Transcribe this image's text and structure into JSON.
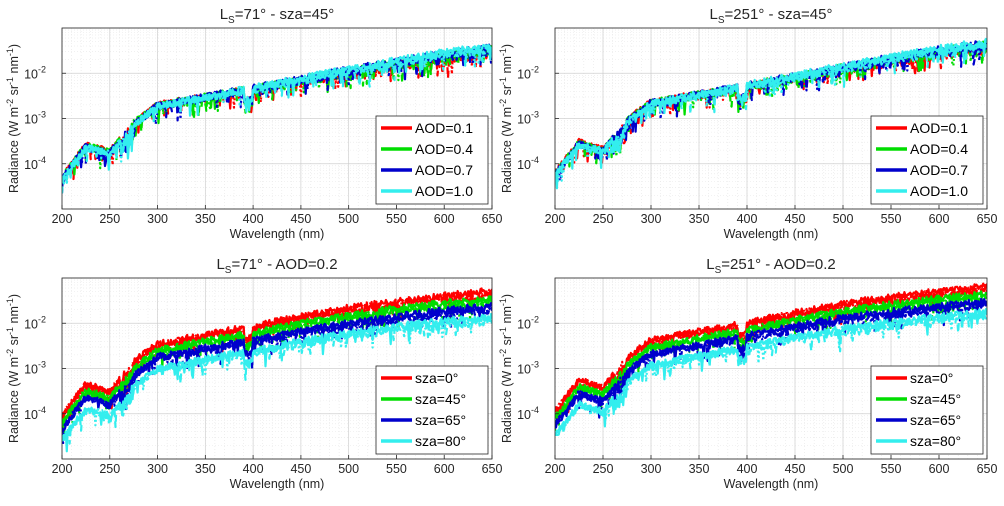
{
  "chart_data": [
    {
      "type": "line",
      "title": "Ls=71°  -  sza=45°",
      "title_parts": {
        "pre": "L",
        "sub": "S",
        "post": "=71°   -   sza=45°"
      },
      "xlabel": "Wavelength (nm)",
      "ylabel_parts": {
        "a": "Radiance (W m",
        "s1": "-2",
        "b": " sr",
        "s2": "-1",
        "c": " nm",
        "s3": "-1",
        "d": ")"
      },
      "xlim": [
        200,
        650
      ],
      "ylim": [
        1e-05,
        0.1
      ],
      "yscale": "log",
      "grid": true,
      "legend_position": "bottom-right",
      "x_ticks": [
        200,
        250,
        300,
        350,
        400,
        450,
        500,
        550,
        600,
        650
      ],
      "y_ticks": [
        {
          "v": 0.0001,
          "m": "10",
          "e": "-4"
        },
        {
          "v": 0.001,
          "m": "10",
          "e": "-3"
        },
        {
          "v": 0.01,
          "m": "10",
          "e": "-2"
        }
      ],
      "x": [
        200,
        225,
        250,
        275,
        300,
        350,
        400,
        450,
        500,
        550,
        600,
        650
      ],
      "series": [
        {
          "name": "AOD=0.1",
          "color": "#ff0000",
          "values": [
            5e-05,
            0.00026,
            0.00018,
            0.0008,
            0.002,
            0.003,
            0.0045,
            0.007,
            0.011,
            0.016,
            0.024,
            0.033
          ]
        },
        {
          "name": "AOD=0.4",
          "color": "#00dd00",
          "values": [
            4.8e-05,
            0.00025,
            0.000175,
            0.00078,
            0.00195,
            0.003,
            0.0046,
            0.0072,
            0.0115,
            0.017,
            0.025,
            0.035
          ]
        },
        {
          "name": "AOD=0.7",
          "color": "#0000cc",
          "values": [
            4.6e-05,
            0.00024,
            0.00017,
            0.00075,
            0.0019,
            0.003,
            0.0047,
            0.0074,
            0.012,
            0.018,
            0.027,
            0.037
          ]
        },
        {
          "name": "AOD=1.0",
          "color": "#33eeee",
          "values": [
            4.4e-05,
            0.00023,
            0.000165,
            0.00072,
            0.00185,
            0.003,
            0.0048,
            0.0076,
            0.0125,
            0.019,
            0.029,
            0.04
          ]
        }
      ]
    },
    {
      "type": "line",
      "title": "Ls=251°  -  sza=45°",
      "title_parts": {
        "pre": "L",
        "sub": "S",
        "post": "=251°   -   sza=45°"
      },
      "xlabel": "Wavelength (nm)",
      "ylabel_parts": {
        "a": "Radiance (W m",
        "s1": "-2",
        "b": " sr",
        "s2": "-1",
        "c": " nm",
        "s3": "-1",
        "d": ")"
      },
      "xlim": [
        200,
        650
      ],
      "ylim": [
        1e-05,
        0.1
      ],
      "yscale": "log",
      "grid": true,
      "legend_position": "bottom-right",
      "x_ticks": [
        200,
        250,
        300,
        350,
        400,
        450,
        500,
        550,
        600,
        650
      ],
      "y_ticks": [
        {
          "v": 0.0001,
          "m": "10",
          "e": "-4"
        },
        {
          "v": 0.001,
          "m": "10",
          "e": "-3"
        },
        {
          "v": 0.01,
          "m": "10",
          "e": "-2"
        }
      ],
      "x": [
        200,
        225,
        250,
        275,
        300,
        350,
        400,
        450,
        500,
        550,
        600,
        650
      ],
      "series": [
        {
          "name": "AOD=0.1",
          "color": "#ff0000",
          "values": [
            6e-05,
            0.0003,
            0.0002,
            0.0009,
            0.0023,
            0.0034,
            0.0052,
            0.008,
            0.013,
            0.02,
            0.029,
            0.04
          ]
        },
        {
          "name": "AOD=0.4",
          "color": "#00dd00",
          "values": [
            5.8e-05,
            0.00029,
            0.000195,
            0.00088,
            0.00225,
            0.0034,
            0.0053,
            0.0083,
            0.0135,
            0.021,
            0.031,
            0.043
          ]
        },
        {
          "name": "AOD=0.7",
          "color": "#0000cc",
          "values": [
            5.6e-05,
            0.00028,
            0.00019,
            0.00085,
            0.0022,
            0.0034,
            0.0054,
            0.0086,
            0.014,
            0.022,
            0.033,
            0.046
          ]
        },
        {
          "name": "AOD=1.0",
          "color": "#33eeee",
          "values": [
            5.4e-05,
            0.00027,
            0.000185,
            0.00082,
            0.00215,
            0.0034,
            0.0055,
            0.0089,
            0.0145,
            0.023,
            0.035,
            0.05
          ]
        }
      ]
    },
    {
      "type": "line",
      "title": "Ls=71°  -  AOD=0.2",
      "title_parts": {
        "pre": "L",
        "sub": "S",
        "post": "=71°   -   AOD=0.2"
      },
      "xlabel": "Wavelength (nm)",
      "ylabel_parts": {
        "a": "Radiance (W m",
        "s1": "-2",
        "b": " sr",
        "s2": "-1",
        "c": " nm",
        "s3": "-1",
        "d": ")"
      },
      "xlim": [
        200,
        650
      ],
      "ylim": [
        1e-05,
        0.1
      ],
      "yscale": "log",
      "grid": true,
      "legend_position": "bottom-right",
      "x_ticks": [
        200,
        250,
        300,
        350,
        400,
        450,
        500,
        550,
        600,
        650
      ],
      "y_ticks": [
        {
          "v": 0.0001,
          "m": "10",
          "e": "-4"
        },
        {
          "v": 0.001,
          "m": "10",
          "e": "-3"
        },
        {
          "v": 0.01,
          "m": "10",
          "e": "-2"
        }
      ],
      "x": [
        200,
        225,
        250,
        275,
        300,
        350,
        400,
        450,
        500,
        550,
        600,
        650
      ],
      "series": [
        {
          "name": "sza=0°",
          "color": "#ff0000",
          "values": [
            9e-05,
            0.00045,
            0.0003,
            0.0014,
            0.0035,
            0.0055,
            0.0085,
            0.014,
            0.022,
            0.03,
            0.04,
            0.052
          ]
        },
        {
          "name": "sza=45°",
          "color": "#00dd00",
          "values": [
            6.5e-05,
            0.00032,
            0.00022,
            0.001,
            0.0025,
            0.004,
            0.006,
            0.01,
            0.015,
            0.021,
            0.028,
            0.036
          ]
        },
        {
          "name": "sza=65°",
          "color": "#0000cc",
          "values": [
            4.5e-05,
            0.00023,
            0.00016,
            0.0007,
            0.0018,
            0.0028,
            0.0043,
            0.0068,
            0.01,
            0.014,
            0.019,
            0.024
          ]
        },
        {
          "name": "sza=80°",
          "color": "#33eeee",
          "values": [
            2.6e-05,
            0.00013,
            9e-05,
            0.0004,
            0.001,
            0.0016,
            0.0025,
            0.004,
            0.006,
            0.0085,
            0.011,
            0.014
          ]
        }
      ]
    },
    {
      "type": "line",
      "title": "Ls=251°  -  AOD=0.2",
      "title_parts": {
        "pre": "L",
        "sub": "S",
        "post": "=251°   -   AOD=0.2"
      },
      "xlabel": "Wavelength (nm)",
      "ylabel_parts": {
        "a": "Radiance (W m",
        "s1": "-2",
        "b": " sr",
        "s2": "-1",
        "c": " nm",
        "s3": "-1",
        "d": ")"
      },
      "xlim": [
        200,
        650
      ],
      "ylim": [
        1e-05,
        0.1
      ],
      "yscale": "log",
      "grid": true,
      "legend_position": "bottom-right",
      "x_ticks": [
        200,
        250,
        300,
        350,
        400,
        450,
        500,
        550,
        600,
        650
      ],
      "y_ticks": [
        {
          "v": 0.0001,
          "m": "10",
          "e": "-4"
        },
        {
          "v": 0.001,
          "m": "10",
          "e": "-3"
        },
        {
          "v": 0.01,
          "m": "10",
          "e": "-2"
        }
      ],
      "x": [
        200,
        225,
        250,
        275,
        300,
        350,
        400,
        450,
        500,
        550,
        600,
        650
      ],
      "series": [
        {
          "name": "sza=0°",
          "color": "#ff0000",
          "values": [
            0.00011,
            0.00055,
            0.00037,
            0.0017,
            0.0042,
            0.0065,
            0.01,
            0.017,
            0.027,
            0.038,
            0.05,
            0.065
          ]
        },
        {
          "name": "sza=45°",
          "color": "#00dd00",
          "values": [
            8e-05,
            0.0004,
            0.00027,
            0.0012,
            0.003,
            0.0047,
            0.0072,
            0.012,
            0.019,
            0.026,
            0.035,
            0.045
          ]
        },
        {
          "name": "sza=65°",
          "color": "#0000cc",
          "values": [
            5.5e-05,
            0.00028,
            0.00019,
            0.00085,
            0.0021,
            0.0033,
            0.0052,
            0.0085,
            0.013,
            0.018,
            0.024,
            0.03
          ]
        },
        {
          "name": "sza=80°",
          "color": "#33eeee",
          "values": [
            3.2e-05,
            0.00016,
            0.00011,
            0.0005,
            0.0012,
            0.0019,
            0.003,
            0.005,
            0.0075,
            0.0105,
            0.014,
            0.018
          ]
        }
      ]
    }
  ]
}
